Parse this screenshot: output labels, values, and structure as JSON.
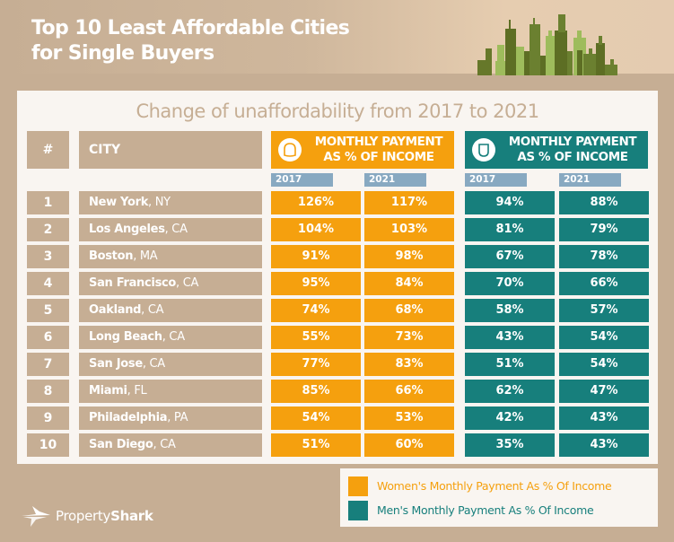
{
  "title_line1": "Top 10 Least Affordable Cities",
  "title_line2": "for Single Buyers",
  "subtitle": "Change of unaffordability from 2017 to 2021",
  "colors": {
    "background": "#c6ae94",
    "panel": "#f9f5f1",
    "women": "#f5a00e",
    "men": "#177f7c",
    "year_tab": "#88a9c1"
  },
  "header": {
    "rank_label": "#",
    "city_label": "CITY",
    "women": {
      "icon": "woman-hat-icon",
      "line1": "MONTHLY PAYMENT",
      "line2": "AS % OF INCOME",
      "years": [
        "2017",
        "2021"
      ]
    },
    "men": {
      "icon": "man-shield-icon",
      "line1": "MONTHLY PAYMENT",
      "line2": "AS % OF INCOME",
      "years": [
        "2017",
        "2021"
      ]
    }
  },
  "rows": [
    {
      "rank": "1",
      "city": "New York",
      "state": ", NY",
      "women_2017": "126%",
      "women_2021": "117%",
      "men_2017": "94%",
      "men_2021": "88%"
    },
    {
      "rank": "2",
      "city": "Los Angeles",
      "state": ", CA",
      "women_2017": "104%",
      "women_2021": "103%",
      "men_2017": "81%",
      "men_2021": "79%"
    },
    {
      "rank": "3",
      "city": "Boston",
      "state": ", MA",
      "women_2017": "91%",
      "women_2021": "98%",
      "men_2017": "67%",
      "men_2021": "78%"
    },
    {
      "rank": "4",
      "city": "San Francisco",
      "state": ", CA",
      "women_2017": "95%",
      "women_2021": "84%",
      "men_2017": "70%",
      "men_2021": "66%"
    },
    {
      "rank": "5",
      "city": "Oakland",
      "state": ", CA",
      "women_2017": "74%",
      "women_2021": "68%",
      "men_2017": "58%",
      "men_2021": "57%"
    },
    {
      "rank": "6",
      "city": "Long Beach",
      "state": ", CA",
      "women_2017": "55%",
      "women_2021": "73%",
      "men_2017": "43%",
      "men_2021": "54%"
    },
    {
      "rank": "7",
      "city": "San Jose",
      "state": ", CA",
      "women_2017": "77%",
      "women_2021": "83%",
      "men_2017": "51%",
      "men_2021": "54%"
    },
    {
      "rank": "8",
      "city": "Miami",
      "state": ", FL",
      "women_2017": "85%",
      "women_2021": "66%",
      "men_2017": "62%",
      "men_2021": "47%"
    },
    {
      "rank": "9",
      "city": "Philadelphia",
      "state": ", PA",
      "women_2017": "54%",
      "women_2021": "53%",
      "men_2017": "42%",
      "men_2021": "43%"
    },
    {
      "rank": "10",
      "city": "San Diego",
      "state": ", CA",
      "women_2017": "51%",
      "women_2021": "60%",
      "men_2017": "35%",
      "men_2021": "43%"
    }
  ],
  "legend": {
    "women": "Women's Monthly Payment As % Of Income",
    "men": "Men's Monthly Payment As % Of Income"
  },
  "logo": {
    "icon": "shark-plane-icon",
    "part1": "Property",
    "part2": "Shark"
  }
}
